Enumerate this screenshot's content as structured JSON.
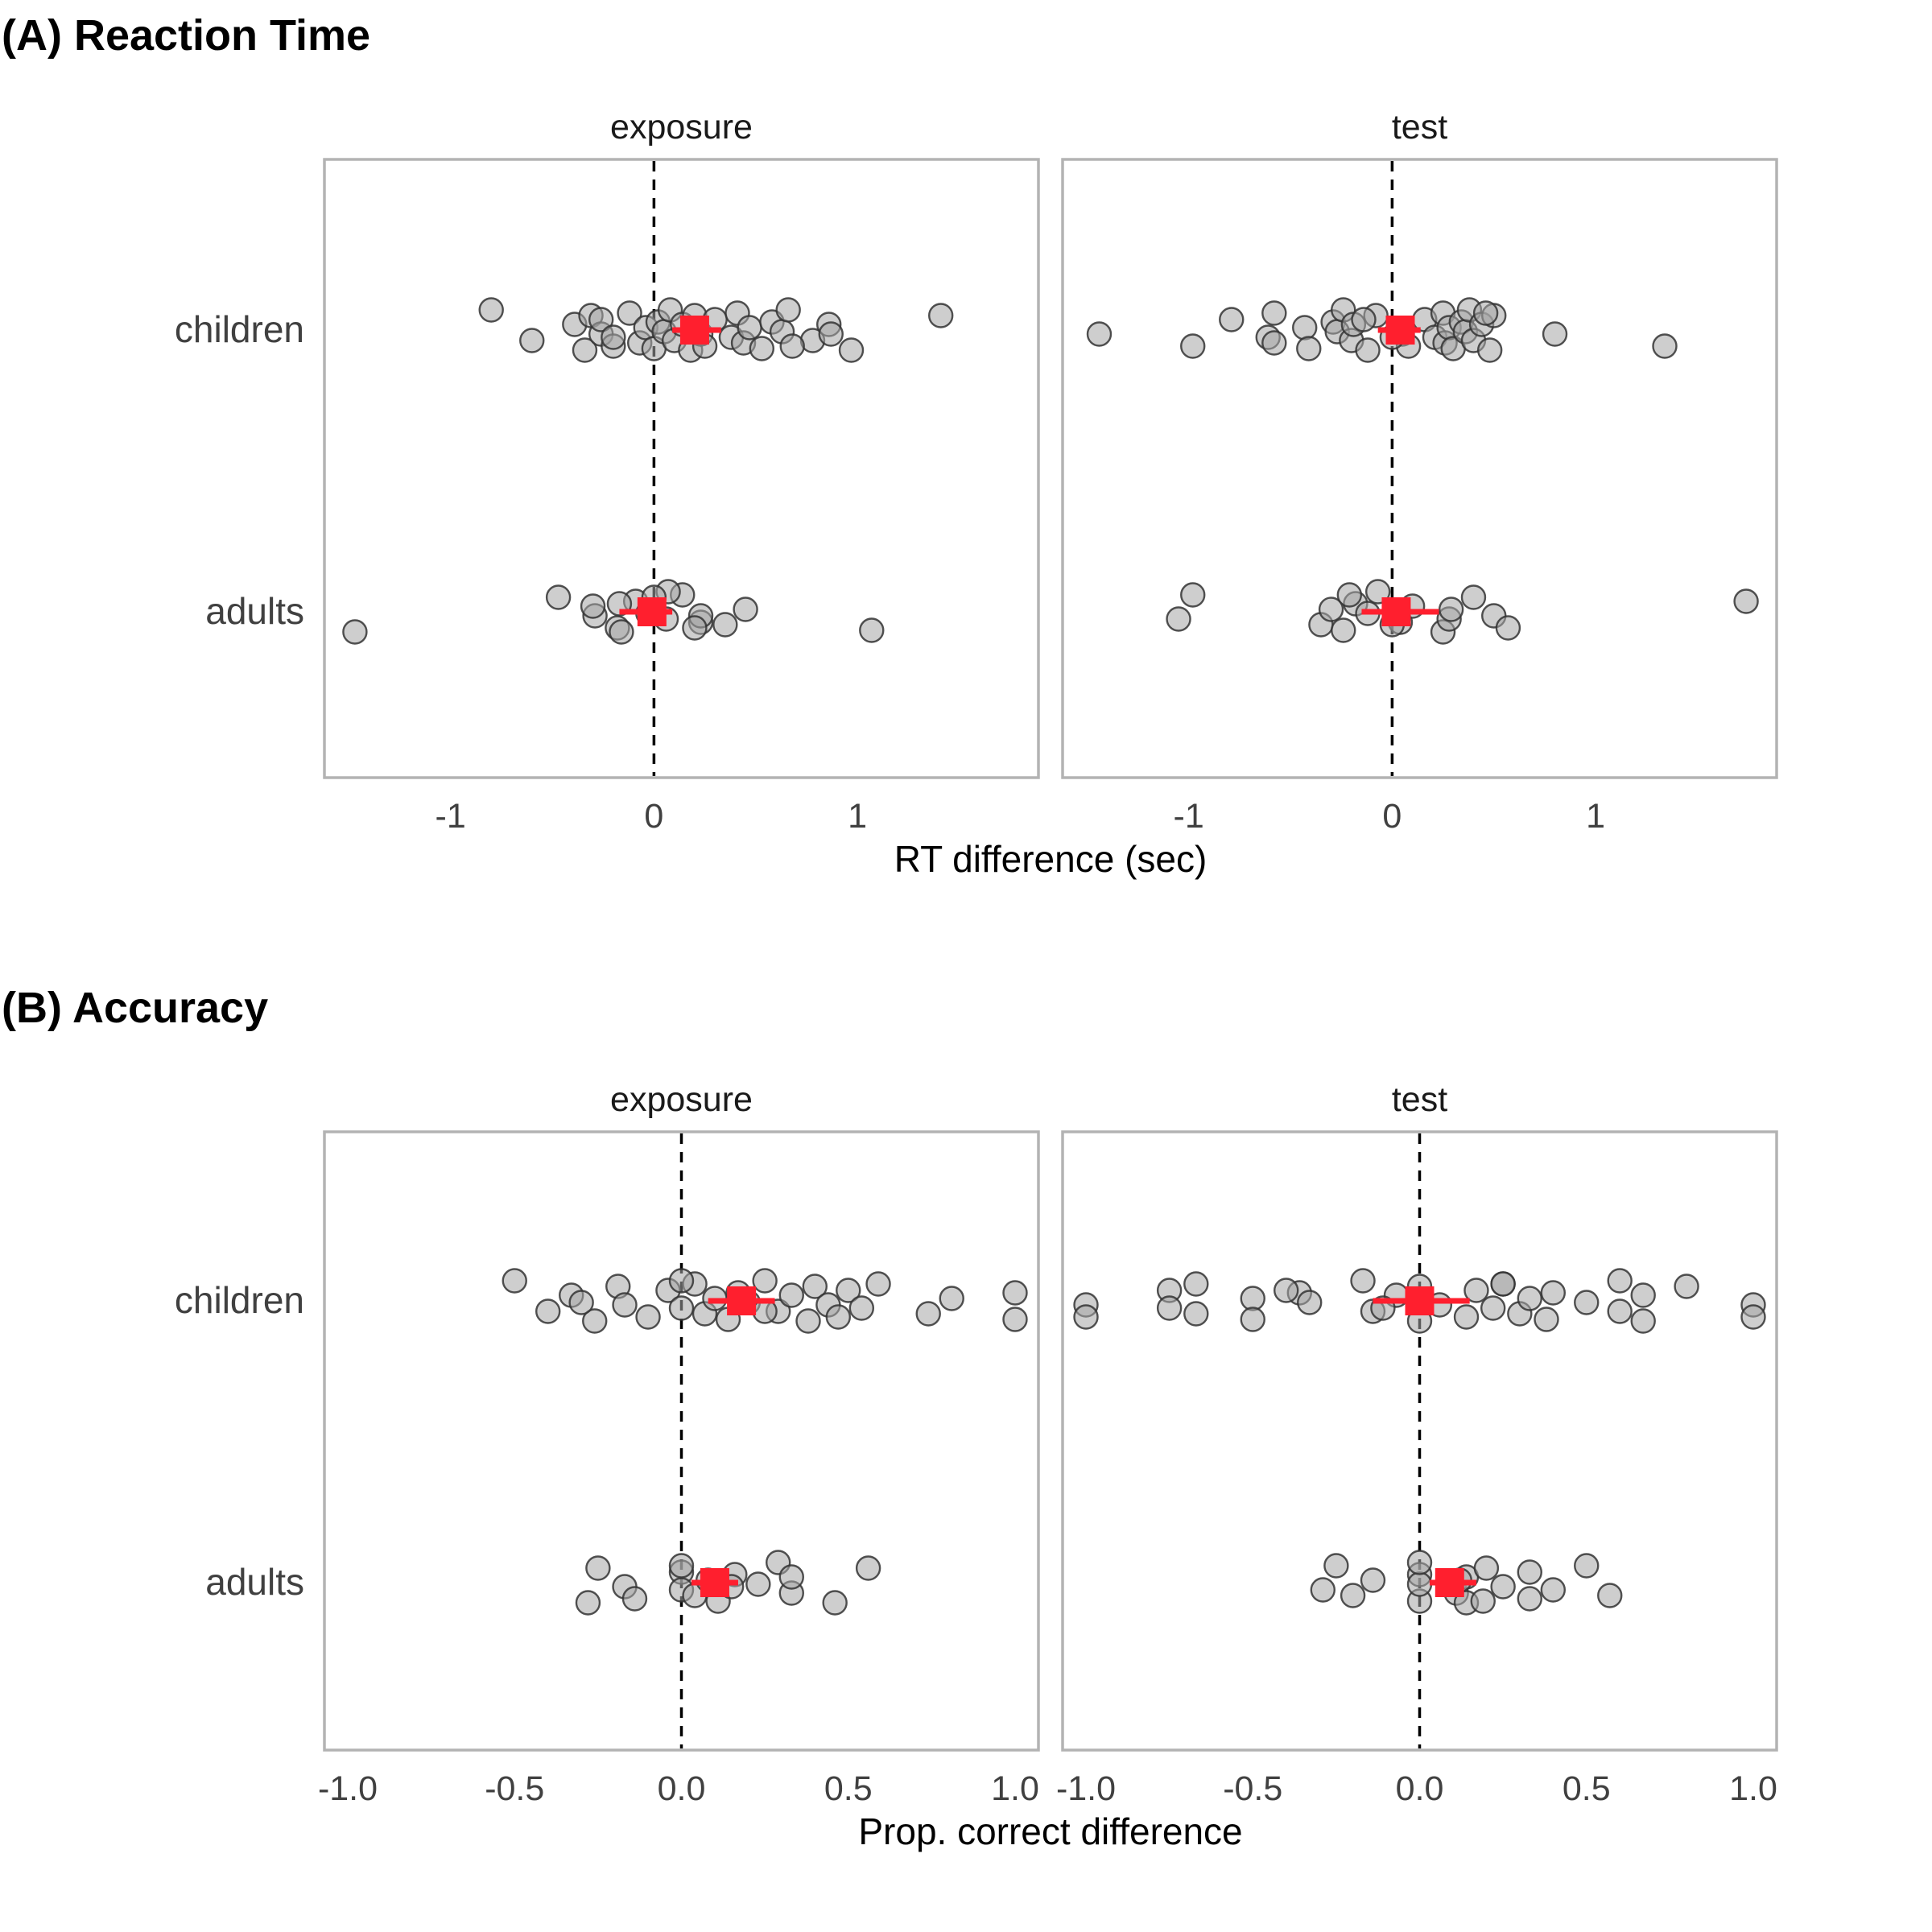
{
  "chart_data": [
    {
      "type": "scatter",
      "title": "(A) Reaction Time",
      "xlabel": "RT difference (sec)",
      "ylabel": "",
      "xlim": [
        -1.62,
        1.89
      ],
      "xticks": [
        -1,
        0,
        1
      ],
      "xtick_labels": [
        "-1",
        "0",
        "1"
      ],
      "categories": [
        "children",
        "adults"
      ],
      "facets": [
        {
          "label": "exposure",
          "groups": [
            {
              "category": "children",
              "points": [
                -0.8,
                -0.6,
                -0.39,
                -0.34,
                -0.31,
                -0.26,
                -0.2,
                -0.26,
                -0.2,
                -0.12,
                -0.07,
                -0.04,
                0.0,
                0.02,
                0.05,
                0.08,
                0.1,
                0.14,
                0.18,
                0.2,
                0.23,
                0.25,
                0.3,
                0.38,
                0.41,
                0.44,
                0.47,
                0.53,
                0.58,
                0.63,
                0.66,
                0.78,
                0.86,
                0.97,
                1.41,
                0.87,
                0.68
              ],
              "mean": 0.2,
              "ci": [
                0.09,
                0.33
              ]
            },
            {
              "category": "adults",
              "points": [
                -1.47,
                -0.47,
                -0.29,
                -0.18,
                -0.09,
                0.06,
                0.14,
                0.35,
                0.45,
                1.07,
                -0.17,
                -0.03,
                0.07,
                0.23,
                -0.3,
                -0.16,
                0.0,
                0.23,
                0.2
              ],
              "mean": -0.01,
              "ci": [
                -0.17,
                0.09
              ]
            }
          ]
        },
        {
          "label": "test",
          "groups": [
            {
              "category": "children",
              "points": [
                -1.44,
                -0.98,
                -0.79,
                -0.61,
                -0.58,
                -0.58,
                -0.43,
                -0.41,
                -0.29,
                -0.27,
                -0.24,
                -0.2,
                -0.19,
                -0.12,
                -0.08,
                0.05,
                0.08,
                0.16,
                0.21,
                0.25,
                0.26,
                0.28,
                0.3,
                0.34,
                0.36,
                0.38,
                0.4,
                0.44,
                0.48,
                0.5,
                0.8,
                1.34,
                -0.14,
                0.0,
                0.46
              ],
              "mean": 0.04,
              "ci": [
                -0.07,
                0.14
              ]
            },
            {
              "category": "adults",
              "points": [
                -1.05,
                -0.98,
                -0.35,
                -0.3,
                -0.24,
                -0.18,
                -0.12,
                -0.07,
                0.04,
                0.1,
                0.25,
                0.4,
                0.5,
                0.57,
                1.74,
                0.28,
                -0.21,
                0.0,
                0.29
              ],
              "mean": 0.02,
              "ci": [
                -0.15,
                0.23
              ]
            }
          ]
        }
      ]
    },
    {
      "type": "scatter",
      "title": "(B) Accuracy",
      "xlabel": "Prop. correct difference",
      "ylabel": "",
      "xlim": [
        -1.07,
        1.07
      ],
      "xticks": [
        -1.0,
        -0.5,
        0.0,
        0.5,
        1.0
      ],
      "xtick_labels": [
        "-1.0",
        "-0.5",
        "0.0",
        "0.5",
        "1.0"
      ],
      "categories": [
        "children",
        "adults"
      ],
      "facets": [
        {
          "label": "exposure",
          "groups": [
            {
              "category": "children",
              "points": [
                -0.5,
                -0.4,
                -0.33,
                -0.26,
                -0.19,
                -0.17,
                -0.1,
                -0.04,
                0.0,
                0.04,
                0.07,
                0.1,
                0.14,
                0.17,
                0.2,
                0.25,
                0.29,
                0.33,
                0.38,
                0.4,
                0.44,
                0.47,
                0.5,
                0.54,
                0.59,
                0.74,
                0.81,
                1.0,
                1.0,
                -0.3,
                0.0,
                0.25
              ],
              "mean": 0.18,
              "ci": [
                0.08,
                0.28
              ]
            },
            {
              "category": "adults",
              "points": [
                -0.28,
                -0.25,
                -0.17,
                -0.14,
                0.0,
                0.0,
                0.0,
                0.04,
                0.08,
                0.11,
                0.16,
                0.23,
                0.29,
                0.33,
                0.33,
                0.46,
                0.56,
                0.15
              ],
              "mean": 0.1,
              "ci": [
                0.03,
                0.17
              ]
            }
          ]
        },
        {
          "label": "test",
          "groups": [
            {
              "category": "children",
              "points": [
                -1.0,
                -1.0,
                -0.75,
                -0.75,
                -0.67,
                -0.67,
                -0.5,
                -0.5,
                -0.36,
                -0.33,
                -0.17,
                -0.14,
                -0.07,
                0.0,
                0.0,
                0.06,
                0.14,
                0.17,
                0.22,
                0.25,
                0.3,
                0.33,
                0.38,
                0.4,
                0.5,
                0.6,
                0.6,
                0.67,
                0.67,
                0.8,
                1.0,
                1.0,
                -0.4,
                -0.11,
                0.25
              ],
              "mean": 0.0,
              "ci": [
                -0.14,
                0.15
              ]
            },
            {
              "category": "adults",
              "points": [
                -0.29,
                -0.25,
                -0.2,
                -0.14,
                0.0,
                0.0,
                0.0,
                0.0,
                0.11,
                0.14,
                0.14,
                0.2,
                0.25,
                0.33,
                0.33,
                0.4,
                0.5,
                0.57,
                0.12,
                0.19
              ],
              "mean": 0.09,
              "ci": [
                0.03,
                0.17
              ]
            }
          ]
        }
      ]
    }
  ]
}
